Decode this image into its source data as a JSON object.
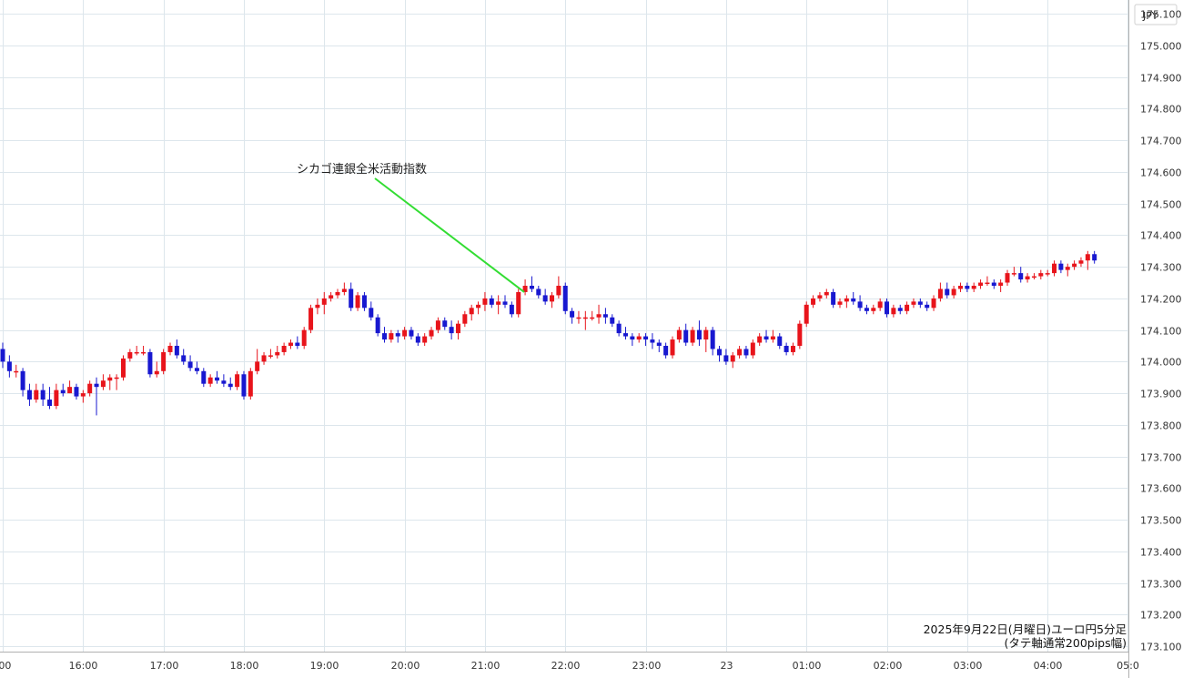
{
  "currency_label": "JPY",
  "chart_data": {
    "type": "candlestick",
    "y_range": [
      173.07,
      175.15
    ],
    "y_ticks": [
      175.1,
      175.0,
      174.9,
      174.8,
      174.7,
      174.6,
      174.5,
      174.4,
      174.3,
      174.2,
      174.1,
      174.0,
      173.9,
      173.8,
      173.7,
      173.6,
      173.5,
      173.4,
      173.3,
      173.2,
      173.1
    ],
    "y_tick_labels": [
      "175.100",
      "175.000",
      "174.900",
      "174.800",
      "174.700",
      "174.600",
      "174.500",
      "174.400",
      "174.300",
      "174.200",
      "174.100",
      "174.000",
      "173.900",
      "173.800",
      "173.700",
      "173.600",
      "173.500",
      "173.400",
      "173.300",
      "173.200",
      "173.100"
    ],
    "x_ticks": [
      {
        "label": ":00",
        "bar": 0
      },
      {
        "label": "16:00",
        "bar": 12
      },
      {
        "label": "17:00",
        "bar": 24
      },
      {
        "label": "18:00",
        "bar": 36
      },
      {
        "label": "19:00",
        "bar": 48
      },
      {
        "label": "20:00",
        "bar": 60
      },
      {
        "label": "21:00",
        "bar": 72
      },
      {
        "label": "22:00",
        "bar": 84
      },
      {
        "label": "23:00",
        "bar": 96
      },
      {
        "label": "23",
        "bar": 108
      },
      {
        "label": "01:00",
        "bar": 120
      },
      {
        "label": "02:00",
        "bar": 132
      },
      {
        "label": "03:00",
        "bar": 144
      },
      {
        "label": "04:00",
        "bar": 156
      },
      {
        "label": "05:0",
        "bar": 168
      }
    ],
    "up_color": "#e8141b",
    "down_color": "#1818d0",
    "annotation": {
      "text": "シカゴ連銀全米活動指数",
      "bar": 78,
      "price": 174.22,
      "color": "#33dd33"
    },
    "caption_line1": "2025年9月22日(月曜日)ユーロ円5分足",
    "caption_line2": "(タテ軸通常200pips幅)",
    "candles": [
      [
        174.04,
        174.06,
        173.98,
        174.0
      ],
      [
        174.0,
        174.02,
        173.95,
        173.97
      ],
      [
        173.97,
        173.99,
        173.95,
        173.97
      ],
      [
        173.97,
        173.98,
        173.89,
        173.91
      ],
      [
        173.91,
        173.93,
        173.86,
        173.88
      ],
      [
        173.88,
        173.93,
        173.87,
        173.91
      ],
      [
        173.91,
        173.93,
        173.86,
        173.88
      ],
      [
        173.88,
        173.92,
        173.85,
        173.86
      ],
      [
        173.86,
        173.93,
        173.85,
        173.91
      ],
      [
        173.91,
        173.93,
        173.89,
        173.9
      ],
      [
        173.9,
        173.94,
        173.9,
        173.92
      ],
      [
        173.92,
        173.93,
        173.88,
        173.89
      ],
      [
        173.89,
        173.91,
        173.87,
        173.9
      ],
      [
        173.9,
        173.94,
        173.89,
        173.93
      ],
      [
        173.93,
        173.95,
        173.83,
        173.92
      ],
      [
        173.92,
        173.96,
        173.91,
        173.94
      ],
      [
        173.94,
        173.96,
        173.91,
        173.95
      ],
      [
        173.95,
        173.96,
        173.91,
        173.95
      ],
      [
        173.95,
        174.02,
        173.94,
        174.01
      ],
      [
        174.01,
        174.04,
        174.0,
        174.03
      ],
      [
        174.03,
        174.05,
        174.02,
        174.03
      ],
      [
        174.03,
        174.05,
        174.02,
        174.03
      ],
      [
        174.03,
        174.04,
        173.95,
        173.96
      ],
      [
        173.96,
        174.0,
        173.95,
        173.97
      ],
      [
        173.97,
        174.04,
        173.96,
        174.03
      ],
      [
        174.03,
        174.06,
        174.02,
        174.05
      ],
      [
        174.05,
        174.07,
        174.01,
        174.02
      ],
      [
        174.02,
        174.04,
        173.99,
        174.0
      ],
      [
        174.0,
        174.02,
        173.97,
        173.98
      ],
      [
        173.98,
        174.0,
        173.96,
        173.97
      ],
      [
        173.97,
        173.98,
        173.92,
        173.93
      ],
      [
        173.93,
        173.96,
        173.92,
        173.95
      ],
      [
        173.95,
        173.97,
        173.93,
        173.94
      ],
      [
        173.94,
        173.96,
        173.92,
        173.93
      ],
      [
        173.93,
        173.95,
        173.91,
        173.92
      ],
      [
        173.92,
        173.97,
        173.91,
        173.96
      ],
      [
        173.96,
        173.97,
        173.88,
        173.89
      ],
      [
        173.89,
        173.98,
        173.88,
        173.97
      ],
      [
        173.97,
        174.04,
        173.96,
        174.0
      ],
      [
        174.0,
        174.03,
        173.99,
        174.02
      ],
      [
        174.02,
        174.04,
        174.01,
        174.02
      ],
      [
        174.02,
        174.05,
        174.01,
        174.03
      ],
      [
        174.03,
        174.06,
        174.02,
        174.05
      ],
      [
        174.05,
        174.07,
        174.04,
        174.06
      ],
      [
        174.06,
        174.08,
        174.04,
        174.05
      ],
      [
        174.05,
        174.11,
        174.04,
        174.1
      ],
      [
        174.1,
        174.18,
        174.09,
        174.17
      ],
      [
        174.17,
        174.2,
        174.15,
        174.18
      ],
      [
        174.18,
        174.22,
        174.15,
        174.2
      ],
      [
        174.2,
        174.22,
        174.19,
        174.21
      ],
      [
        174.21,
        174.23,
        174.2,
        174.22
      ],
      [
        174.22,
        174.25,
        174.21,
        174.23
      ],
      [
        174.23,
        174.25,
        174.16,
        174.17
      ],
      [
        174.17,
        174.22,
        174.16,
        174.21
      ],
      [
        174.21,
        174.22,
        174.16,
        174.17
      ],
      [
        174.17,
        174.19,
        174.13,
        174.14
      ],
      [
        174.14,
        174.15,
        174.08,
        174.09
      ],
      [
        174.09,
        174.11,
        174.06,
        174.07
      ],
      [
        174.07,
        174.1,
        174.06,
        174.09
      ],
      [
        174.09,
        174.1,
        174.06,
        174.08
      ],
      [
        174.08,
        174.11,
        174.07,
        174.1
      ],
      [
        174.1,
        174.11,
        174.07,
        174.08
      ],
      [
        174.08,
        174.09,
        174.05,
        174.06
      ],
      [
        174.06,
        174.09,
        174.05,
        174.08
      ],
      [
        174.08,
        174.11,
        174.07,
        174.1
      ],
      [
        174.1,
        174.14,
        174.09,
        174.13
      ],
      [
        174.13,
        174.14,
        174.1,
        174.11
      ],
      [
        174.11,
        174.13,
        174.07,
        174.09
      ],
      [
        174.09,
        174.13,
        174.07,
        174.12
      ],
      [
        174.12,
        174.16,
        174.11,
        174.15
      ],
      [
        174.15,
        174.18,
        174.13,
        174.17
      ],
      [
        174.17,
        174.19,
        174.15,
        174.18
      ],
      [
        174.18,
        174.22,
        174.16,
        174.2
      ],
      [
        174.2,
        174.21,
        174.17,
        174.18
      ],
      [
        174.18,
        174.21,
        174.15,
        174.19
      ],
      [
        174.19,
        174.21,
        174.17,
        174.18
      ],
      [
        174.18,
        174.19,
        174.14,
        174.15
      ],
      [
        174.15,
        174.23,
        174.14,
        174.22
      ],
      [
        174.22,
        174.26,
        174.21,
        174.24
      ],
      [
        174.24,
        174.27,
        174.22,
        174.23
      ],
      [
        174.23,
        174.24,
        174.2,
        174.21
      ],
      [
        174.21,
        174.23,
        174.18,
        174.19
      ],
      [
        174.19,
        174.22,
        174.17,
        174.21
      ],
      [
        174.21,
        174.27,
        174.2,
        174.24
      ],
      [
        174.24,
        174.25,
        174.15,
        174.16
      ],
      [
        174.16,
        174.17,
        174.12,
        174.14
      ],
      [
        174.14,
        174.16,
        174.12,
        174.14
      ],
      [
        174.14,
        174.16,
        174.1,
        174.14
      ],
      [
        174.14,
        174.16,
        174.13,
        174.14
      ],
      [
        174.14,
        174.18,
        174.12,
        174.15
      ],
      [
        174.15,
        174.17,
        174.12,
        174.14
      ],
      [
        174.14,
        174.15,
        174.11,
        174.12
      ],
      [
        174.12,
        174.13,
        174.08,
        174.09
      ],
      [
        174.09,
        174.11,
        174.07,
        174.08
      ],
      [
        174.08,
        174.09,
        174.05,
        174.07
      ],
      [
        174.07,
        174.09,
        174.06,
        174.08
      ],
      [
        174.08,
        174.09,
        174.05,
        174.07
      ],
      [
        174.07,
        174.09,
        174.04,
        174.06
      ],
      [
        174.06,
        174.07,
        174.03,
        174.05
      ],
      [
        174.05,
        174.06,
        174.01,
        174.02
      ],
      [
        174.02,
        174.08,
        174.01,
        174.07
      ],
      [
        174.07,
        174.11,
        174.06,
        174.1
      ],
      [
        174.1,
        174.12,
        174.05,
        174.06
      ],
      [
        174.06,
        174.11,
        174.05,
        174.1
      ],
      [
        174.1,
        174.13,
        174.05,
        174.07
      ],
      [
        174.07,
        174.11,
        174.03,
        174.1
      ],
      [
        174.1,
        174.11,
        174.02,
        174.04
      ],
      [
        174.04,
        174.05,
        174.0,
        174.02
      ],
      [
        174.02,
        174.04,
        173.99,
        174.0
      ],
      [
        174.0,
        174.03,
        173.98,
        174.02
      ],
      [
        174.02,
        174.05,
        174.01,
        174.04
      ],
      [
        174.04,
        174.05,
        174.01,
        174.02
      ],
      [
        174.02,
        174.07,
        174.01,
        174.06
      ],
      [
        174.06,
        174.09,
        174.05,
        174.08
      ],
      [
        174.08,
        174.1,
        174.06,
        174.07
      ],
      [
        174.07,
        174.1,
        174.06,
        174.08
      ],
      [
        174.08,
        174.09,
        174.04,
        174.05
      ],
      [
        174.05,
        174.06,
        174.02,
        174.03
      ],
      [
        174.03,
        174.06,
        174.02,
        174.05
      ],
      [
        174.05,
        174.13,
        174.04,
        174.12
      ],
      [
        174.12,
        174.19,
        174.11,
        174.18
      ],
      [
        174.18,
        174.21,
        174.17,
        174.2
      ],
      [
        174.2,
        174.22,
        174.19,
        174.21
      ],
      [
        174.21,
        174.23,
        174.2,
        174.22
      ],
      [
        174.22,
        174.23,
        174.17,
        174.18
      ],
      [
        174.18,
        174.2,
        174.17,
        174.19
      ],
      [
        174.19,
        174.21,
        174.17,
        174.2
      ],
      [
        174.2,
        174.22,
        174.18,
        174.19
      ],
      [
        174.19,
        174.21,
        174.16,
        174.17
      ],
      [
        174.17,
        174.18,
        174.15,
        174.16
      ],
      [
        174.16,
        174.18,
        174.15,
        174.17
      ],
      [
        174.17,
        174.2,
        174.16,
        174.19
      ],
      [
        174.19,
        174.2,
        174.14,
        174.15
      ],
      [
        174.15,
        174.18,
        174.14,
        174.17
      ],
      [
        174.17,
        174.18,
        174.15,
        174.16
      ],
      [
        174.16,
        174.19,
        174.15,
        174.18
      ],
      [
        174.18,
        174.2,
        174.17,
        174.19
      ],
      [
        174.19,
        174.2,
        174.17,
        174.18
      ],
      [
        174.18,
        174.19,
        174.16,
        174.17
      ],
      [
        174.17,
        174.21,
        174.16,
        174.2
      ],
      [
        174.2,
        174.25,
        174.19,
        174.23
      ],
      [
        174.23,
        174.25,
        174.2,
        174.21
      ],
      [
        174.21,
        174.24,
        174.2,
        174.23
      ],
      [
        174.23,
        174.25,
        174.22,
        174.24
      ],
      [
        174.24,
        174.25,
        174.22,
        174.23
      ],
      [
        174.23,
        174.25,
        174.22,
        174.24
      ],
      [
        174.24,
        174.26,
        174.23,
        174.25
      ],
      [
        174.25,
        174.27,
        174.24,
        174.25
      ],
      [
        174.25,
        174.26,
        174.23,
        174.24
      ],
      [
        174.24,
        174.26,
        174.22,
        174.25
      ],
      [
        174.25,
        174.29,
        174.24,
        174.28
      ],
      [
        174.28,
        174.3,
        174.27,
        174.28
      ],
      [
        174.28,
        174.3,
        174.25,
        174.26
      ],
      [
        174.26,
        174.28,
        174.25,
        174.27
      ],
      [
        174.27,
        174.28,
        174.26,
        174.27
      ],
      [
        174.27,
        174.29,
        174.26,
        174.28
      ],
      [
        174.28,
        174.29,
        174.27,
        174.28
      ],
      [
        174.28,
        174.32,
        174.27,
        174.31
      ],
      [
        174.31,
        174.32,
        174.28,
        174.29
      ],
      [
        174.29,
        174.31,
        174.27,
        174.3
      ],
      [
        174.3,
        174.32,
        174.29,
        174.31
      ],
      [
        174.31,
        174.33,
        174.3,
        174.32
      ],
      [
        174.32,
        174.35,
        174.29,
        174.34
      ],
      [
        174.34,
        174.35,
        174.31,
        174.32
      ]
    ]
  }
}
